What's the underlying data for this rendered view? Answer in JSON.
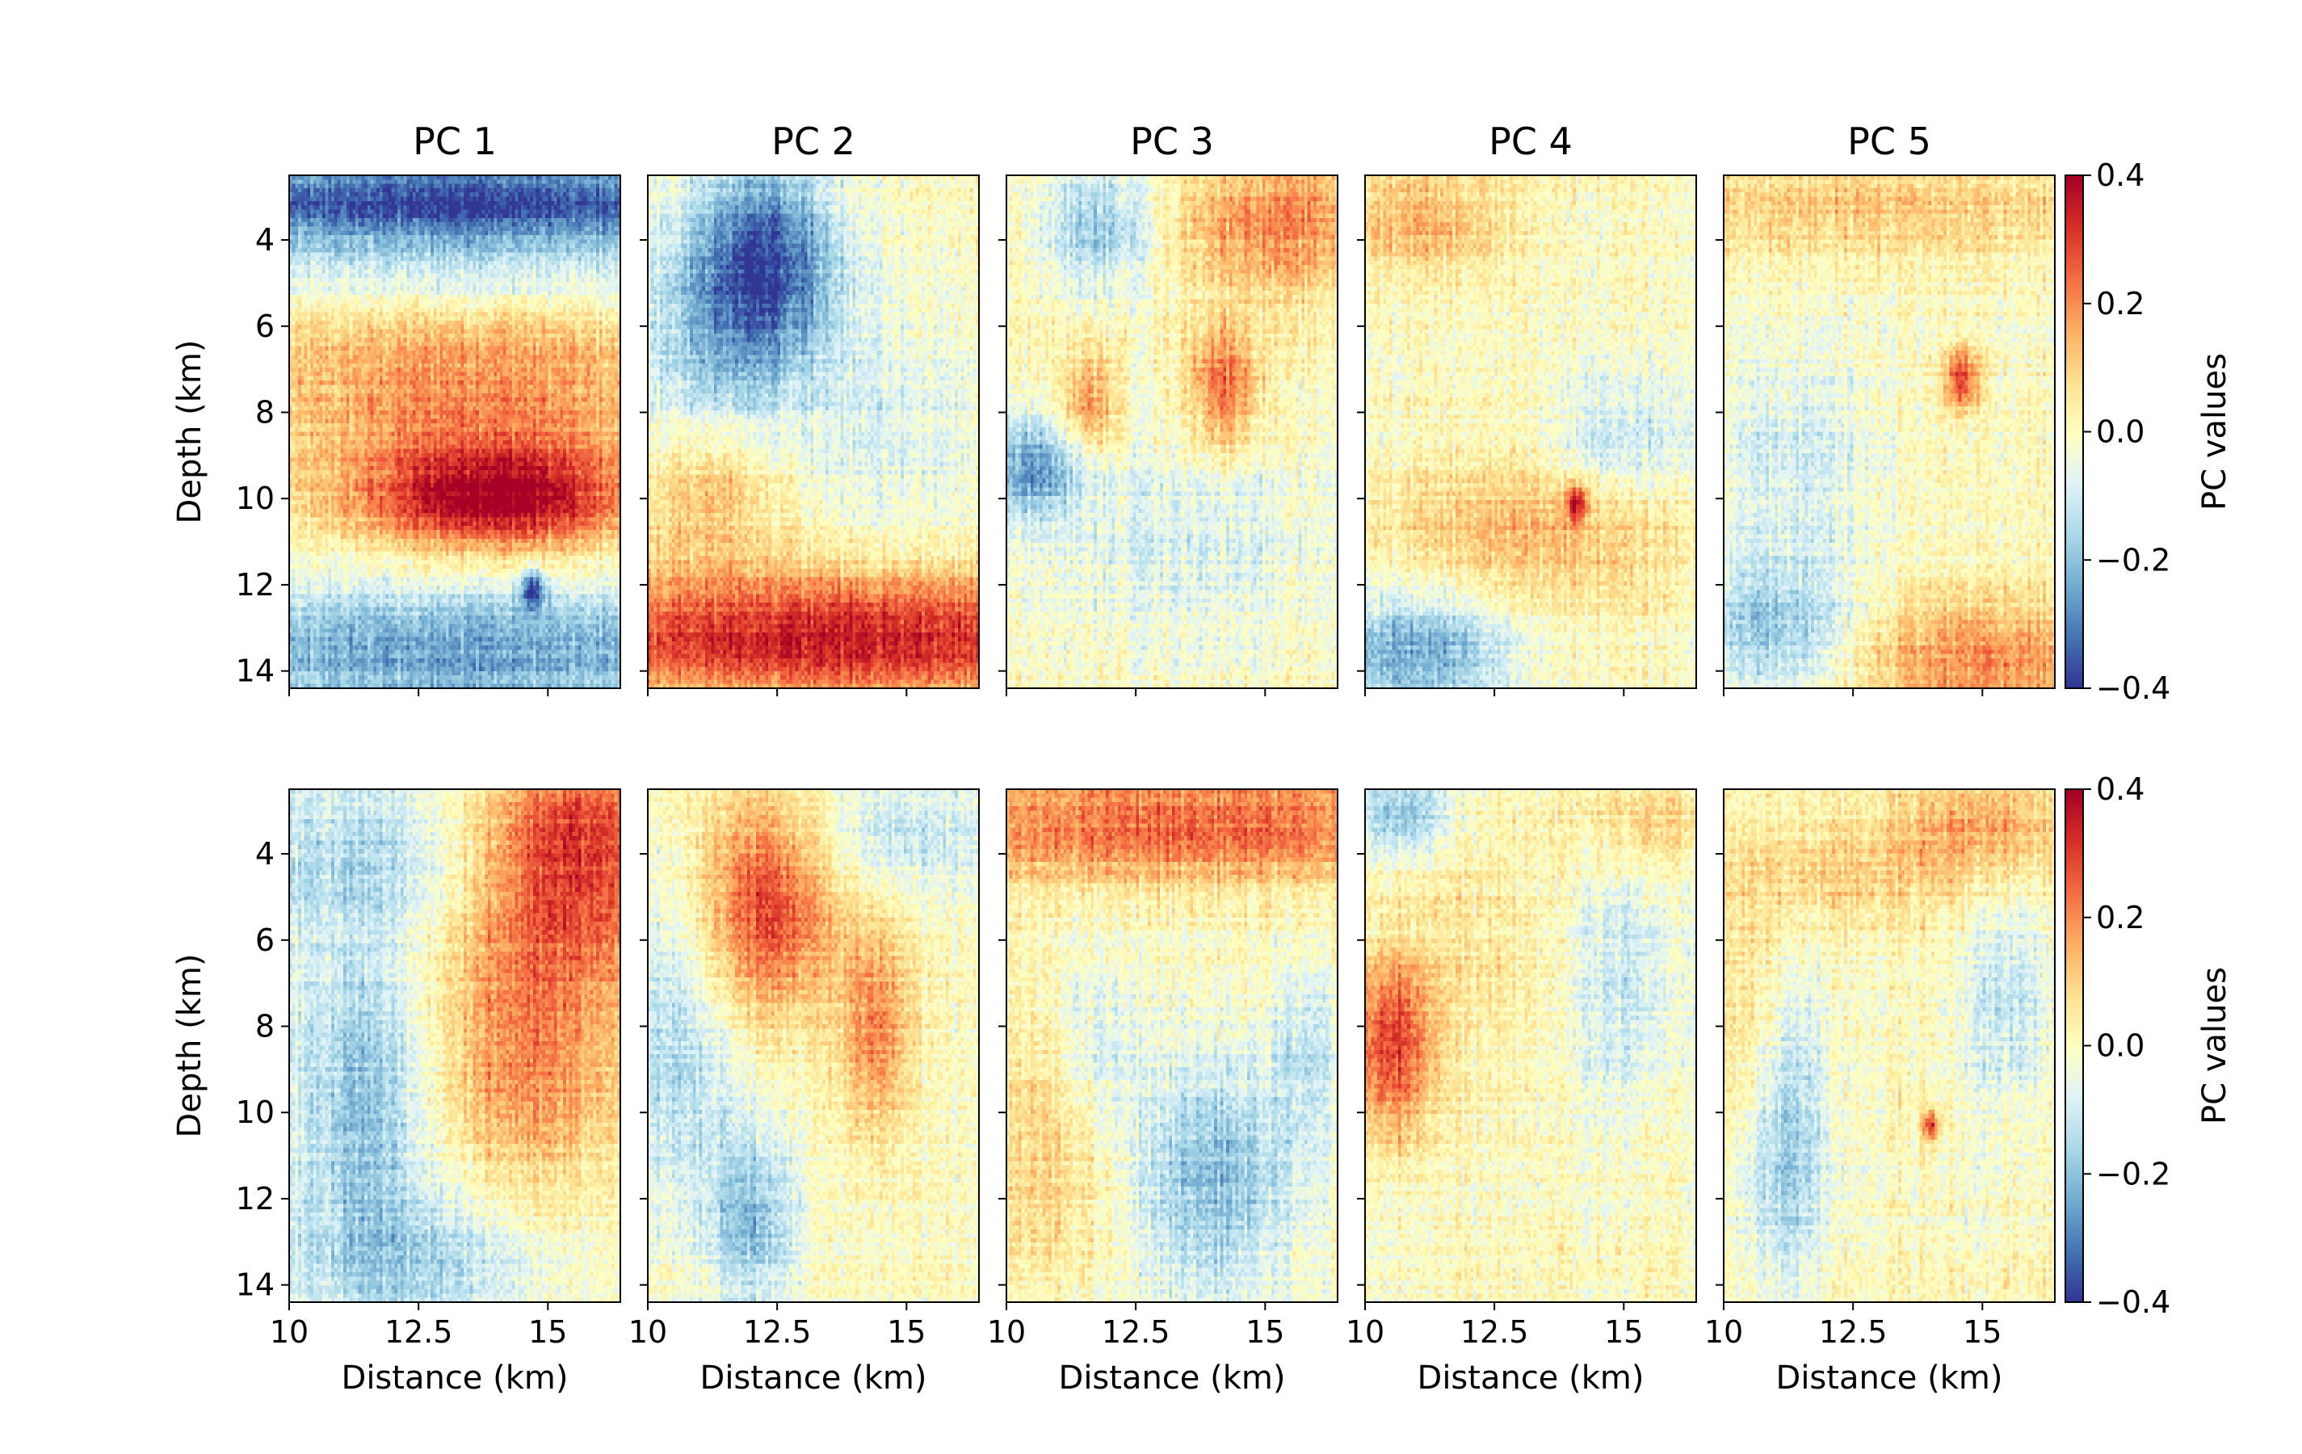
{
  "chart_data": {
    "type": "heatmap",
    "layout": {
      "rows": 2,
      "columns": 5
    },
    "column_titles": [
      "PC 1",
      "PC 2",
      "PC 3",
      "PC 4",
      "PC 5"
    ],
    "xlabel": "Distance (km)",
    "ylabel": "Depth (km)",
    "xlim": [
      10,
      16.4
    ],
    "ylim": [
      14.4,
      2.5
    ],
    "y_inverted": true,
    "x_ticks": [
      10,
      12.5,
      15
    ],
    "x_tick_labels": [
      "10",
      "12.5",
      "15"
    ],
    "y_ticks": [
      4,
      6,
      8,
      10,
      12,
      14
    ],
    "y_tick_labels": [
      "4",
      "6",
      "8",
      "10",
      "12",
      "14"
    ],
    "colorbar": {
      "label": "PC values",
      "colormap": "RdYlBu_r",
      "range": [
        -0.4,
        0.4
      ],
      "ticks": [
        0.4,
        0.2,
        0.0,
        -0.2,
        -0.4
      ],
      "tick_labels": [
        "0.4",
        "0.2",
        "0.0",
        "−0.2",
        "−0.4"
      ],
      "colors": [
        "#313695",
        "#4575b4",
        "#74add1",
        "#abd9e9",
        "#e0f3f8",
        "#ffffbf",
        "#fee090",
        "#fdae61",
        "#f46d43",
        "#d73027",
        "#a50026"
      ]
    },
    "panels": [
      {
        "row": 0,
        "title": "PC 1",
        "features": [
          {
            "x": 13.2,
            "y": 3.1,
            "v": -0.4,
            "sx": 6,
            "sy": 0.7
          },
          {
            "x": 13.2,
            "y": 4.7,
            "v": -0.12,
            "sx": 6,
            "sy": 0.6
          },
          {
            "x": 13.5,
            "y": 7.5,
            "v": 0.2,
            "sx": 3,
            "sy": 1.4
          },
          {
            "x": 14.0,
            "y": 10.0,
            "v": 0.4,
            "sx": 1.9,
            "sy": 0.9
          },
          {
            "x": 13.2,
            "y": 13.6,
            "v": -0.25,
            "sx": 6,
            "sy": 1.2
          },
          {
            "x": 14.7,
            "y": 12.1,
            "v": -0.35,
            "sx": 0.15,
            "sy": 0.3
          }
        ]
      },
      {
        "row": 0,
        "title": "PC 2",
        "features": [
          {
            "x": 12.3,
            "y": 4.6,
            "v": -0.35,
            "sx": 1.0,
            "sy": 1.8
          },
          {
            "x": 11.0,
            "y": 6.5,
            "v": -0.12,
            "sx": 1.0,
            "sy": 2.0
          },
          {
            "x": 11.2,
            "y": 9.8,
            "v": 0.15,
            "sx": 1.0,
            "sy": 1.2
          },
          {
            "x": 13.5,
            "y": 13.2,
            "v": 0.35,
            "sx": 5,
            "sy": 1.1
          },
          {
            "x": 14.5,
            "y": 8.5,
            "v": -0.08,
            "sx": 1.5,
            "sy": 2.0
          }
        ]
      },
      {
        "row": 0,
        "title": "PC 3",
        "features": [
          {
            "x": 11.8,
            "y": 3.7,
            "v": -0.2,
            "sx": 0.8,
            "sy": 1.0
          },
          {
            "x": 15.2,
            "y": 3.6,
            "v": 0.2,
            "sx": 1.5,
            "sy": 1.2
          },
          {
            "x": 14.2,
            "y": 7.4,
            "v": 0.25,
            "sx": 0.5,
            "sy": 1.0
          },
          {
            "x": 11.6,
            "y": 7.8,
            "v": 0.2,
            "sx": 0.4,
            "sy": 0.8
          },
          {
            "x": 10.5,
            "y": 9.3,
            "v": -0.25,
            "sx": 0.7,
            "sy": 0.8
          },
          {
            "x": 13.3,
            "y": 11.0,
            "v": -0.08,
            "sx": 2.5,
            "sy": 1.5
          }
        ]
      },
      {
        "row": 0,
        "title": "PC 4",
        "features": [
          {
            "x": 11.0,
            "y": 3.6,
            "v": 0.15,
            "sx": 1.2,
            "sy": 0.8
          },
          {
            "x": 13.5,
            "y": 10.8,
            "v": 0.15,
            "sx": 2.2,
            "sy": 1.2
          },
          {
            "x": 11.0,
            "y": 13.6,
            "v": -0.25,
            "sx": 1.3,
            "sy": 1.0
          },
          {
            "x": 15.0,
            "y": 8.8,
            "v": -0.12,
            "sx": 1.0,
            "sy": 1.2
          },
          {
            "x": 14.1,
            "y": 10.1,
            "v": 0.3,
            "sx": 0.15,
            "sy": 0.3
          }
        ]
      },
      {
        "row": 0,
        "title": "PC 5",
        "features": [
          {
            "x": 13.0,
            "y": 3.3,
            "v": 0.12,
            "sx": 4,
            "sy": 0.8
          },
          {
            "x": 14.6,
            "y": 7.2,
            "v": 0.3,
            "sx": 0.25,
            "sy": 0.5
          },
          {
            "x": 11.0,
            "y": 13.0,
            "v": -0.2,
            "sx": 1.2,
            "sy": 1.2
          },
          {
            "x": 15.0,
            "y": 13.7,
            "v": 0.2,
            "sx": 2.0,
            "sy": 1.0
          },
          {
            "x": 11.3,
            "y": 9.0,
            "v": -0.1,
            "sx": 1.2,
            "sy": 1.5
          }
        ]
      },
      {
        "row": 1,
        "title": "PC 1",
        "features": [
          {
            "x": 15.5,
            "y": 3.8,
            "v": 0.3,
            "sx": 1.5,
            "sy": 2.0
          },
          {
            "x": 11.5,
            "y": 4.0,
            "v": -0.15,
            "sx": 2.0,
            "sy": 1.5
          },
          {
            "x": 14.5,
            "y": 8.5,
            "v": 0.2,
            "sx": 1.5,
            "sy": 2.5
          },
          {
            "x": 11.5,
            "y": 9.5,
            "v": -0.22,
            "sx": 1.0,
            "sy": 2.5
          },
          {
            "x": 12.5,
            "y": 13.5,
            "v": -0.15,
            "sx": 2.0,
            "sy": 1.2
          }
        ]
      },
      {
        "row": 1,
        "title": "PC 2",
        "features": [
          {
            "x": 12.3,
            "y": 5.2,
            "v": 0.3,
            "sx": 0.9,
            "sy": 1.8
          },
          {
            "x": 14.4,
            "y": 8.0,
            "v": 0.2,
            "sx": 0.5,
            "sy": 1.8
          },
          {
            "x": 10.6,
            "y": 8.5,
            "v": -0.15,
            "sx": 0.8,
            "sy": 2.5
          },
          {
            "x": 12.0,
            "y": 12.5,
            "v": -0.2,
            "sx": 0.6,
            "sy": 1.5
          },
          {
            "x": 15.0,
            "y": 3.5,
            "v": -0.12,
            "sx": 1.5,
            "sy": 1.0
          }
        ]
      },
      {
        "row": 1,
        "title": "PC 3",
        "features": [
          {
            "x": 13.5,
            "y": 3.3,
            "v": 0.25,
            "sx": 4,
            "sy": 1.0
          },
          {
            "x": 14.0,
            "y": 11.5,
            "v": -0.2,
            "sx": 1.2,
            "sy": 2.0
          },
          {
            "x": 15.8,
            "y": 8.5,
            "v": -0.12,
            "sx": 0.5,
            "sy": 1.5
          },
          {
            "x": 11.0,
            "y": 11.0,
            "v": 0.1,
            "sx": 1.0,
            "sy": 2.0
          },
          {
            "x": 11.8,
            "y": 8.5,
            "v": -0.1,
            "sx": 0.6,
            "sy": 1.5
          }
        ]
      },
      {
        "row": 1,
        "title": "PC 4",
        "features": [
          {
            "x": 10.5,
            "y": 8.5,
            "v": 0.3,
            "sx": 0.6,
            "sy": 1.5
          },
          {
            "x": 10.8,
            "y": 3.1,
            "v": -0.2,
            "sx": 0.7,
            "sy": 0.6
          },
          {
            "x": 15.0,
            "y": 7.0,
            "v": -0.12,
            "sx": 0.8,
            "sy": 2.0
          },
          {
            "x": 15.5,
            "y": 3.3,
            "v": 0.1,
            "sx": 1.0,
            "sy": 0.8
          },
          {
            "x": 12.0,
            "y": 6.0,
            "v": 0.05,
            "sx": 1.5,
            "sy": 2.0
          }
        ]
      },
      {
        "row": 1,
        "title": "PC 5",
        "features": [
          {
            "x": 15.0,
            "y": 3.3,
            "v": 0.15,
            "sx": 1.2,
            "sy": 0.8
          },
          {
            "x": 11.2,
            "y": 10.5,
            "v": -0.2,
            "sx": 0.6,
            "sy": 2.5
          },
          {
            "x": 15.5,
            "y": 7.5,
            "v": -0.12,
            "sx": 0.6,
            "sy": 2.0
          },
          {
            "x": 12.5,
            "y": 4.5,
            "v": 0.1,
            "sx": 2.5,
            "sy": 1.0
          },
          {
            "x": 10.5,
            "y": 8.0,
            "v": 0.1,
            "sx": 0.6,
            "sy": 2.0
          },
          {
            "x": 14.0,
            "y": 10.3,
            "v": 0.3,
            "sx": 0.12,
            "sy": 0.25
          }
        ]
      }
    ]
  }
}
